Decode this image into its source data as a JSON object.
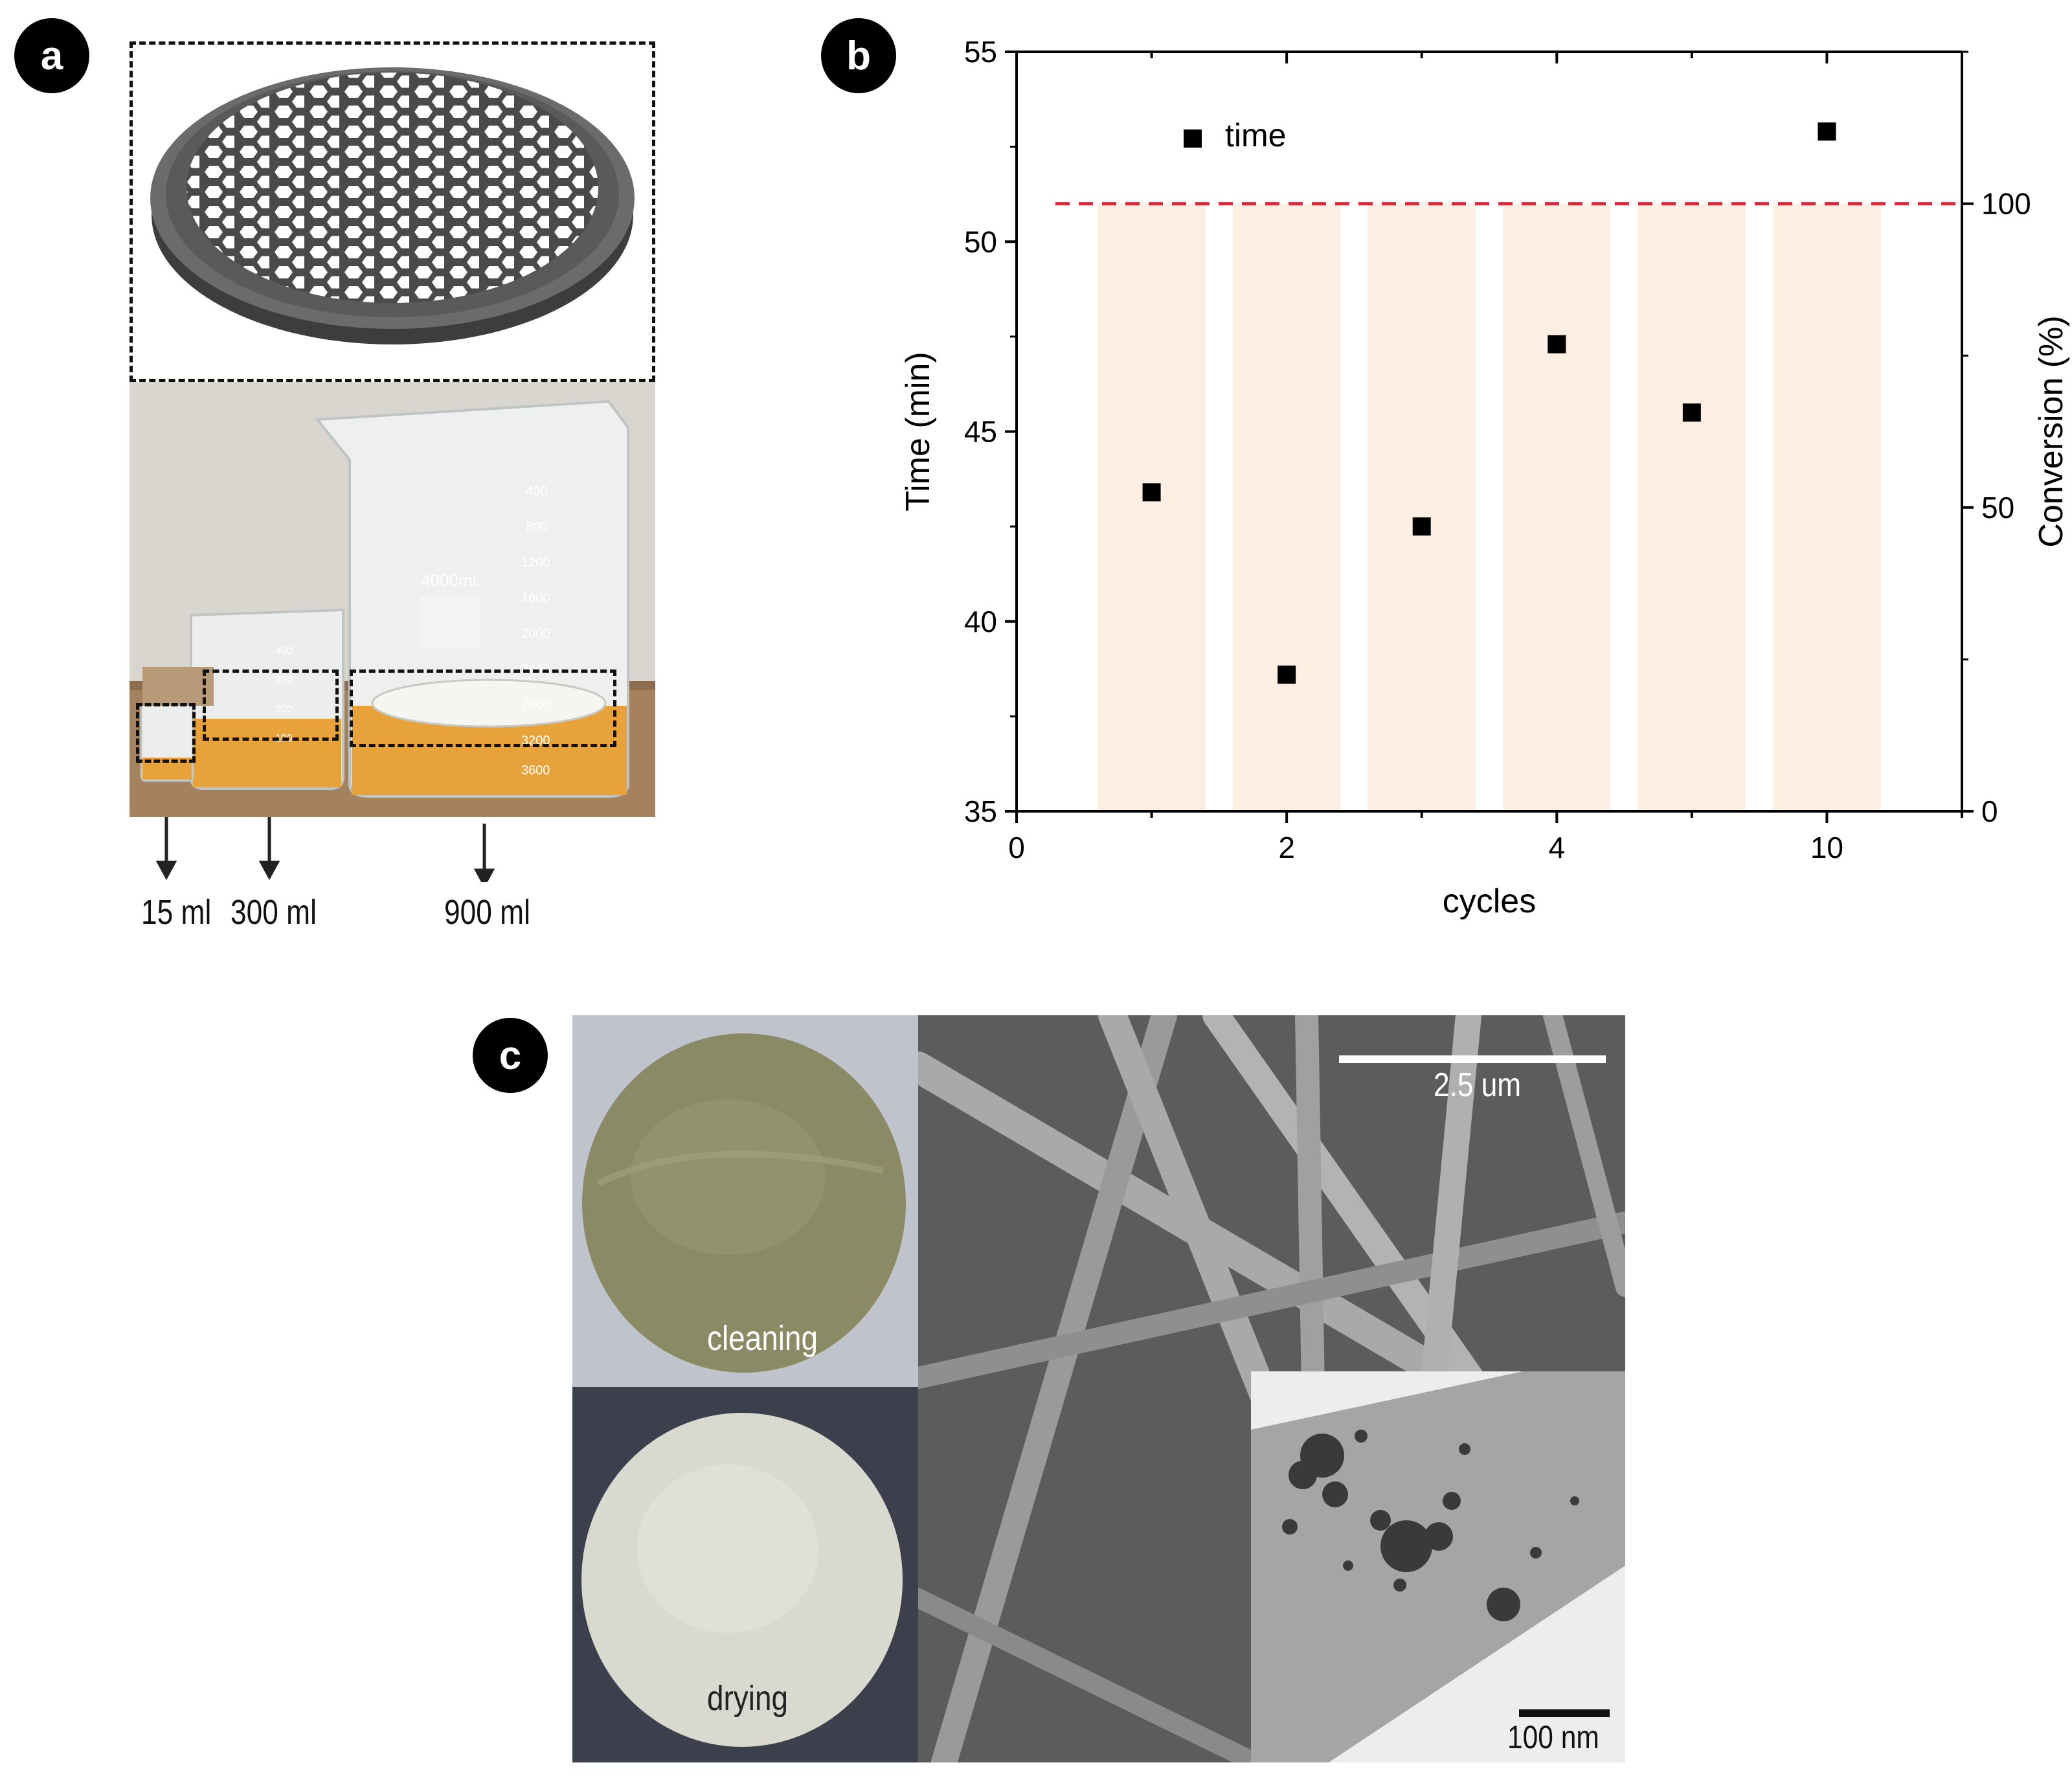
{
  "panels": {
    "a": {
      "badge": "a"
    },
    "b": {
      "badge": "b"
    },
    "c": {
      "badge": "c"
    }
  },
  "panel_a": {
    "volumes": [
      "15 ml",
      "300 ml",
      "900 ml"
    ],
    "beaker_marks_large": [
      "400",
      "800",
      "1200",
      "1600",
      "2000",
      "2400",
      "2800",
      "3200",
      "3600"
    ],
    "beaker_marks_small": [
      "400",
      "300",
      "200",
      "100"
    ],
    "beaker_capacity": "4000mL",
    "colors": {
      "liquid": "#e8a23a",
      "filter": "#4a4a4a",
      "wall": "#d8d6cf",
      "table": "#a5825f"
    }
  },
  "chart_data": {
    "type": "scatter",
    "x_tick_labels": [
      "0",
      "2",
      "4",
      "10"
    ],
    "categories": [
      "1",
      "2",
      "3",
      "4",
      "5",
      "10"
    ],
    "xlabel": "cycles",
    "ylabel": "Time (min)",
    "ylabel_right": "Conversion (%)",
    "ylim": [
      35,
      55
    ],
    "y_ticks": [
      "35",
      "40",
      "45",
      "50",
      "55"
    ],
    "ylim_right": [
      0,
      125
    ],
    "y_ticks_right": [
      "0",
      "50",
      "100"
    ],
    "series": [
      {
        "name": "time",
        "values": [
          43.4,
          38.6,
          42.5,
          47.3,
          45.5,
          52.9
        ],
        "marker": "square",
        "color": "#000000"
      }
    ],
    "conversion_bars": [
      100,
      100,
      100,
      100,
      100,
      100
    ],
    "bar_color": "#fdf0e2",
    "reference_line": {
      "value": 100,
      "axis": "right",
      "color": "#d62b3b",
      "style": "dashed"
    },
    "legend": "top-left"
  },
  "panel_c": {
    "label_cleaning": "cleaning",
    "label_drying": "drying",
    "scale_sem": "2.5 um",
    "scale_tem": "100 nm"
  }
}
